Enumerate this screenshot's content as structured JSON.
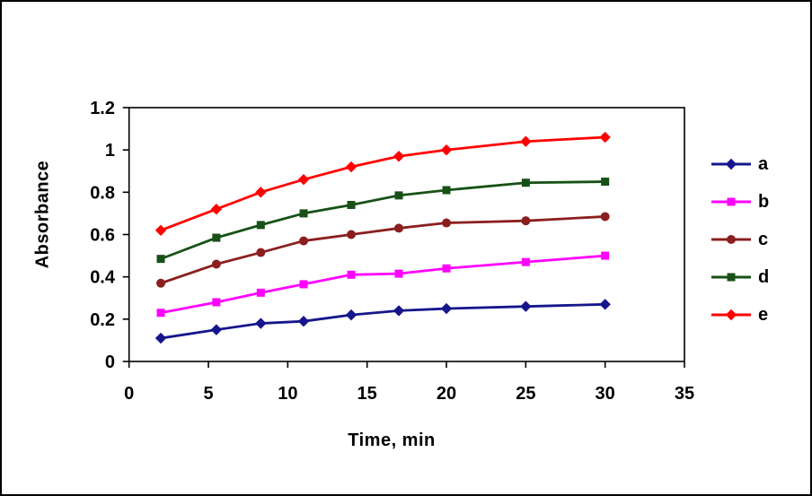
{
  "figure": {
    "background": "#ffffff",
    "border_color": "#000000",
    "axis_color": "#000000"
  },
  "chart_data": {
    "type": "line",
    "title": "",
    "xlabel": "Time, min",
    "ylabel": "Absorbance",
    "xlim": [
      0,
      35
    ],
    "ylim": [
      0,
      1.2
    ],
    "x_ticks": [
      0,
      5,
      10,
      15,
      20,
      25,
      30,
      35
    ],
    "x_tick_labels": [
      "0",
      "5",
      "10",
      "15",
      "20",
      "25",
      "30",
      "35"
    ],
    "y_ticks": [
      0,
      0.2,
      0.4,
      0.6,
      0.8,
      1,
      1.2
    ],
    "y_tick_labels": [
      "0",
      "0.2",
      "0.4",
      "0.6",
      "0.8",
      "1",
      "1.2"
    ],
    "grid": false,
    "legend_position": "right",
    "x": [
      2,
      5.5,
      8.3,
      11,
      14,
      17,
      20,
      25,
      30
    ],
    "series": [
      {
        "name": "a",
        "color": "#16168C",
        "marker": "diamond",
        "values": [
          0.11,
          0.15,
          0.18,
          0.19,
          0.22,
          0.24,
          0.25,
          0.26,
          0.27
        ]
      },
      {
        "name": "b",
        "color": "#FF00FF",
        "marker": "square",
        "values": [
          0.23,
          0.28,
          0.325,
          0.365,
          0.41,
          0.415,
          0.44,
          0.47,
          0.5
        ]
      },
      {
        "name": "c",
        "color": "#8B1F1F",
        "marker": "circle",
        "values": [
          0.37,
          0.46,
          0.515,
          0.57,
          0.6,
          0.63,
          0.655,
          0.665,
          0.685
        ]
      },
      {
        "name": "d",
        "color": "#175117",
        "marker": "square",
        "values": [
          0.485,
          0.585,
          0.645,
          0.7,
          0.74,
          0.785,
          0.81,
          0.845,
          0.85
        ]
      },
      {
        "name": "e",
        "color": "#FF0000",
        "marker": "diamond",
        "values": [
          0.62,
          0.72,
          0.8,
          0.86,
          0.92,
          0.97,
          1.0,
          1.04,
          1.06
        ]
      }
    ]
  }
}
